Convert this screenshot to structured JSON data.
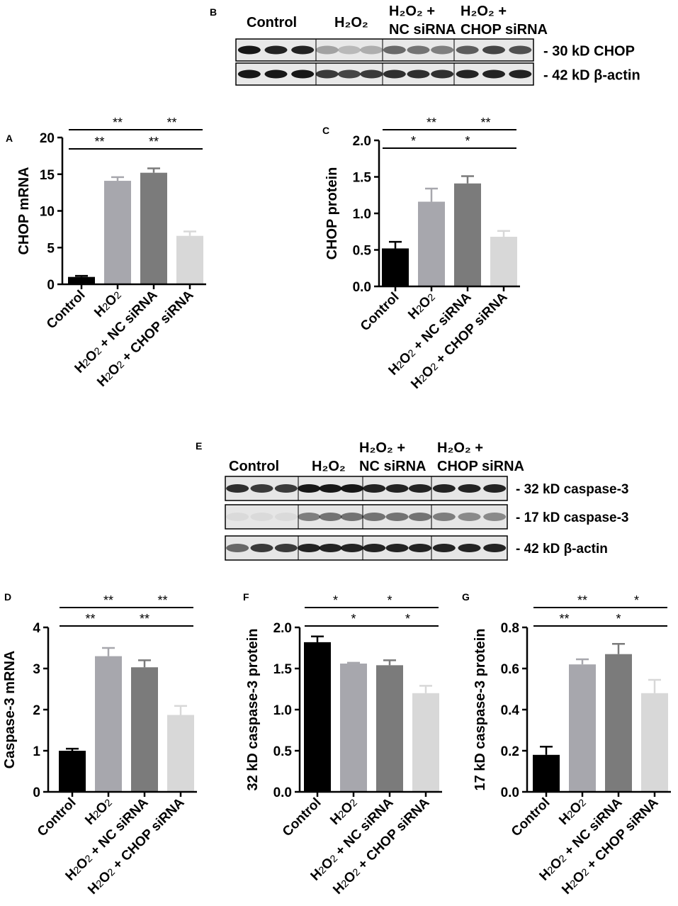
{
  "conditions": [
    "Control",
    "H2O2",
    "H2O2 + NC siRNA",
    "H2O2 + CHOP siRNA"
  ],
  "colors": [
    "#000000",
    "#a7a7ad",
    "#7b7b7b",
    "#d8d8d8"
  ],
  "blot_B": {
    "label": "B",
    "headers": [
      [
        "Control"
      ],
      [
        "H₂O₂"
      ],
      [
        "H₂O₂ +",
        "NC siRNA"
      ],
      [
        "H₂O₂ +",
        "CHOP siRNA"
      ]
    ],
    "rows": [
      {
        "label": "- 30  kD CHOP",
        "intensity": [
          0.9,
          0.85,
          0.85,
          0.3,
          0.2,
          0.25,
          0.55,
          0.5,
          0.45,
          0.6,
          0.7,
          0.65
        ]
      },
      {
        "label": "- 42  kD β-actin",
        "intensity": [
          0.9,
          0.9,
          0.9,
          0.75,
          0.7,
          0.75,
          0.8,
          0.8,
          0.8,
          0.85,
          0.85,
          0.85
        ]
      }
    ]
  },
  "blot_E": {
    "label": "E",
    "headers": [
      [
        "Control"
      ],
      [
        "H₂O₂"
      ],
      [
        "H₂O₂ +",
        "NC siRNA"
      ],
      [
        "H₂O₂ +",
        "CHOP siRNA"
      ]
    ],
    "rows": [
      {
        "label": "- 32 kD caspase-3",
        "intensity": [
          0.8,
          0.75,
          0.75,
          0.9,
          0.9,
          0.9,
          0.85,
          0.85,
          0.85,
          0.85,
          0.85,
          0.85
        ]
      },
      {
        "label": "- 17 kD caspase-3",
        "intensity": [
          0.05,
          0.05,
          0.05,
          0.45,
          0.5,
          0.5,
          0.5,
          0.5,
          0.5,
          0.45,
          0.4,
          0.4
        ]
      },
      {
        "label": "- 42 kD β-actin",
        "intensity": [
          0.55,
          0.75,
          0.75,
          0.85,
          0.85,
          0.85,
          0.85,
          0.85,
          0.85,
          0.85,
          0.85,
          0.85
        ]
      }
    ]
  },
  "chart_data": [
    {
      "panel": "A",
      "type": "bar",
      "categories": [
        "Control",
        "H2O2",
        "H2O2 + NC siRNA",
        "H2O2 + CHOP siRNA"
      ],
      "values": [
        1.0,
        14.1,
        15.2,
        6.6
      ],
      "errors": [
        0.15,
        0.5,
        0.6,
        0.6
      ],
      "ylabel": "CHOP mRNA",
      "ylim": [
        0,
        20
      ],
      "yticks": [
        "0",
        "5",
        "10",
        "15",
        "20"
      ],
      "significance": [
        {
          "from": 0,
          "to": 2,
          "label": "**"
        },
        {
          "from": 2,
          "to": 3,
          "label": "**"
        },
        {
          "from": 0,
          "to": 1,
          "label": "**"
        },
        {
          "from": 1,
          "to": 3,
          "label": "**"
        }
      ]
    },
    {
      "panel": "C",
      "type": "bar",
      "categories": [
        "Control",
        "H2O2",
        "H2O2 + NC siRNA",
        "H2O2 + CHOP siRNA"
      ],
      "values": [
        0.52,
        1.16,
        1.41,
        0.68
      ],
      "errors": [
        0.09,
        0.18,
        0.1,
        0.08
      ],
      "ylabel": "CHOP protein",
      "ylim": [
        0,
        2.0
      ],
      "yticks": [
        "0.0",
        "0.5",
        "1.0",
        "1.5",
        "2.0"
      ],
      "significance": [
        {
          "from": 0,
          "to": 2,
          "label": "**"
        },
        {
          "from": 2,
          "to": 3,
          "label": "**"
        },
        {
          "from": 0,
          "to": 1,
          "label": "*"
        },
        {
          "from": 1,
          "to": 3,
          "label": "*"
        }
      ]
    },
    {
      "panel": "D",
      "type": "bar",
      "categories": [
        "Control",
        "H2O2",
        "H2O2 + NC siRNA",
        "H2O2 + CHOP siRNA"
      ],
      "values": [
        1.0,
        3.3,
        3.03,
        1.87
      ],
      "errors": [
        0.05,
        0.2,
        0.17,
        0.22
      ],
      "ylabel": "Caspase-3 mRNA",
      "ylim": [
        0,
        4
      ],
      "yticks": [
        "0",
        "1",
        "2",
        "3",
        "4"
      ],
      "significance": [
        {
          "from": 0,
          "to": 2,
          "label": "**"
        },
        {
          "from": 2,
          "to": 3,
          "label": "**"
        },
        {
          "from": 0,
          "to": 1,
          "label": "**"
        },
        {
          "from": 1,
          "to": 3,
          "label": "**"
        }
      ]
    },
    {
      "panel": "F",
      "type": "bar",
      "categories": [
        "Control",
        "H2O2",
        "H2O2 + NC siRNA",
        "H2O2 + CHOP siRNA"
      ],
      "values": [
        1.82,
        1.56,
        1.54,
        1.2
      ],
      "errors": [
        0.07,
        0.01,
        0.06,
        0.09
      ],
      "ylabel": "32 kD caspase-3 protein",
      "ylim": [
        0,
        2.0
      ],
      "yticks": [
        "0.0",
        "0.5",
        "1.0",
        "1.5",
        "2.0"
      ],
      "significance": [
        {
          "from": 0,
          "to": 1,
          "label": "*"
        },
        {
          "from": 1,
          "to": 3,
          "label": "*"
        },
        {
          "from": 0,
          "to": 2,
          "label": "*"
        },
        {
          "from": 2,
          "to": 3,
          "label": "*"
        }
      ]
    },
    {
      "panel": "G",
      "type": "bar",
      "categories": [
        "Control",
        "H2O2",
        "H2O2 + NC siRNA",
        "H2O2 + CHOP siRNA"
      ],
      "values": [
        0.18,
        0.62,
        0.67,
        0.48
      ],
      "errors": [
        0.04,
        0.025,
        0.05,
        0.065
      ],
      "ylabel": "17 kD caspase-3 protein",
      "ylim": [
        0,
        0.8
      ],
      "yticks": [
        "0.0",
        "0.2",
        "0.4",
        "0.6",
        "0.8"
      ],
      "significance": [
        {
          "from": 0,
          "to": 2,
          "label": "**"
        },
        {
          "from": 2,
          "to": 3,
          "label": "*"
        },
        {
          "from": 0,
          "to": 1,
          "label": "**"
        },
        {
          "from": 1,
          "to": 3,
          "label": "*"
        }
      ]
    }
  ]
}
